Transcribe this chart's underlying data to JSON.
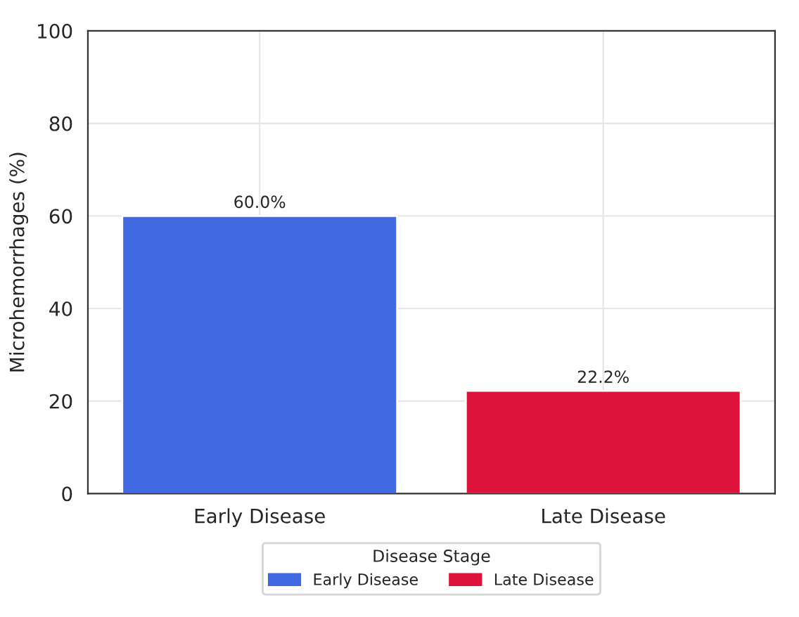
{
  "chart_data": {
    "type": "bar",
    "ylabel": "Microhemorrhages (%)",
    "legend_title": "Disease Stage",
    "categories": [
      "Early Disease",
      "Late Disease"
    ],
    "series": [
      {
        "name": "Early Disease",
        "color": "#4169e1",
        "values": [
          60.0,
          null
        ]
      },
      {
        "name": "Late Disease",
        "color": "#dc143c",
        "values": [
          null,
          22.2
        ]
      }
    ],
    "value_labels": [
      "60.0%",
      "22.2%"
    ],
    "ylim": [
      0,
      100
    ],
    "yticks": [
      0,
      20,
      40,
      60,
      80,
      100
    ],
    "grid": true,
    "legend": "bottom"
  }
}
